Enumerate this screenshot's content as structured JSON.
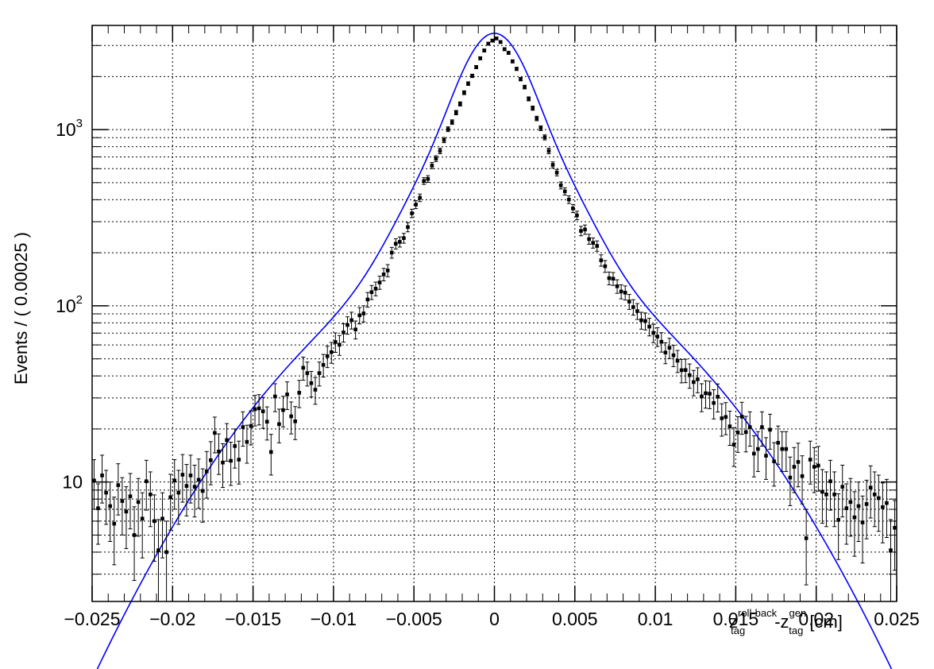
{
  "chart_data": {
    "type": "scatter",
    "title": "",
    "ylabel": "Events / ( 0.00025 )",
    "xlabel_parts": {
      "base1": "z",
      "sup1": "roll-back",
      "sub1": "tag",
      "sep": "-",
      "base2": "z",
      "sup2": "gen",
      "sub2": "tag",
      "unit": "[cm]"
    },
    "x_scale": "linear",
    "y_scale": "log",
    "xlim": [
      -0.025,
      0.025
    ],
    "ylim": [
      2.1,
      3900
    ],
    "grid": true,
    "x_ticks": [
      -0.025,
      -0.02,
      -0.015,
      -0.01,
      -0.005,
      0,
      0.005,
      0.01,
      0.015,
      0.02,
      0.025
    ],
    "x_tick_labels": [
      "−0.025",
      "−0.02",
      "−0.015",
      "−0.01",
      "−0.005",
      "0",
      "0.005",
      "0.01",
      "0.015",
      "0.02",
      "0.025"
    ],
    "y_ticks": [
      10,
      100,
      1000
    ],
    "y_tick_labels": [
      {
        "base": "10",
        "exp": ""
      },
      {
        "base": "10",
        "exp": "2"
      },
      {
        "base": "10",
        "exp": "3"
      }
    ],
    "series": [
      {
        "kind": "data-points-with-errors",
        "color": "#000000",
        "points": [
          [
            -0.02488,
            10.2
          ],
          [
            -0.02463,
            7.1
          ],
          [
            -0.02438,
            10.9
          ],
          [
            -0.02413,
            8.7
          ],
          [
            -0.02388,
            7.3
          ],
          [
            -0.02363,
            5.8
          ],
          [
            -0.02338,
            9.6
          ],
          [
            -0.02313,
            7.8
          ],
          [
            -0.02288,
            6.8
          ],
          [
            -0.02263,
            8.3
          ],
          [
            -0.02238,
            5.0
          ],
          [
            -0.02213,
            7.7
          ],
          [
            -0.02188,
            6.2
          ],
          [
            -0.02163,
            10.1
          ],
          [
            -0.02138,
            8.5
          ],
          [
            -0.02113,
            6.0
          ],
          [
            -0.02088,
            4.1
          ],
          [
            -0.02063,
            6.2
          ],
          [
            -0.02038,
            4.0
          ],
          [
            -0.02013,
            8.2
          ],
          [
            -0.01988,
            10.2
          ],
          [
            -0.01963,
            8.7
          ],
          [
            -0.01938,
            11.0
          ],
          [
            -0.01913,
            9.5
          ],
          [
            -0.01888,
            10.9
          ],
          [
            -0.01863,
            9.4
          ],
          [
            -0.01838,
            10.3
          ],
          [
            -0.01813,
            8.9
          ],
          [
            -0.01788,
            11.5
          ],
          [
            -0.01763,
            13.3
          ],
          [
            -0.01738,
            19.0
          ],
          [
            -0.01713,
            14.9
          ],
          [
            -0.01688,
            12.9
          ],
          [
            -0.01663,
            17.3
          ],
          [
            -0.01638,
            13.2
          ],
          [
            -0.01613,
            16.0
          ],
          [
            -0.01588,
            13.4
          ],
          [
            -0.01563,
            20.5
          ],
          [
            -0.01538,
            16.9
          ],
          [
            -0.01513,
            20.8
          ],
          [
            -0.01488,
            25.9
          ],
          [
            -0.01463,
            26.2
          ],
          [
            -0.01438,
            25.2
          ],
          [
            -0.01413,
            22.0
          ],
          [
            -0.01388,
            14.8
          ],
          [
            -0.01363,
            30.6
          ],
          [
            -0.01338,
            21.3
          ],
          [
            -0.01313,
            25.6
          ],
          [
            -0.01288,
            31.4
          ],
          [
            -0.01263,
            23.6
          ],
          [
            -0.01238,
            22.1
          ],
          [
            -0.01213,
            32.1
          ],
          [
            -0.01188,
            44.5
          ],
          [
            -0.01163,
            41.5
          ],
          [
            -0.01138,
            36.4
          ],
          [
            -0.01113,
            33.4
          ],
          [
            -0.01088,
            41.5
          ],
          [
            -0.01063,
            46.2
          ],
          [
            -0.01038,
            51.8
          ],
          [
            -0.01013,
            54.6
          ],
          [
            -0.00988,
            62.3
          ],
          [
            -0.00963,
            60.1
          ],
          [
            -0.00938,
            70.6
          ],
          [
            -0.00913,
            77.8
          ],
          [
            -0.00888,
            82.9
          ],
          [
            -0.00863,
            73.4
          ],
          [
            -0.00838,
            88.3
          ],
          [
            -0.00813,
            90.5
          ],
          [
            -0.00788,
            108.6
          ],
          [
            -0.00763,
            119.5
          ],
          [
            -0.00738,
            125.1
          ],
          [
            -0.00713,
            135.6
          ],
          [
            -0.00688,
            150.8
          ],
          [
            -0.00663,
            158.7
          ],
          [
            -0.00638,
            200.4
          ],
          [
            -0.00613,
            225.1
          ],
          [
            -0.00588,
            230.6
          ],
          [
            -0.00563,
            242.2
          ],
          [
            -0.00538,
            279.7
          ],
          [
            -0.00513,
            334.8
          ],
          [
            -0.00488,
            375.4
          ],
          [
            -0.00463,
            410.6
          ],
          [
            -0.00438,
            510.8
          ],
          [
            -0.00413,
            524.8
          ],
          [
            -0.00388,
            625.0
          ],
          [
            -0.00363,
            684.3
          ],
          [
            -0.00338,
            756.7
          ],
          [
            -0.00313,
            872.0
          ],
          [
            -0.00288,
            1005.2
          ],
          [
            -0.00263,
            1102.5
          ],
          [
            -0.00238,
            1248.5
          ],
          [
            -0.00213,
            1398.4
          ],
          [
            -0.00188,
            1619.6
          ],
          [
            -0.00163,
            1823.4
          ],
          [
            -0.00138,
            2018.0
          ],
          [
            -0.00113,
            2262.1
          ],
          [
            -0.00088,
            2539.9
          ],
          [
            -0.00063,
            2810.0
          ],
          [
            -0.00038,
            3073.0
          ],
          [
            -0.00013,
            3198.8
          ],
          [
            0.00013,
            3290.7
          ],
          [
            0.00038,
            3140.2
          ],
          [
            0.00063,
            2859.5
          ],
          [
            0.00088,
            2725.2
          ],
          [
            0.00113,
            2438.1
          ],
          [
            0.00138,
            2210.4
          ],
          [
            0.00163,
            1934.0
          ],
          [
            0.00188,
            1743.0
          ],
          [
            0.00213,
            1494.1
          ],
          [
            0.00238,
            1323.6
          ],
          [
            0.00263,
            1156.6
          ],
          [
            0.00288,
            1018.6
          ],
          [
            0.00313,
            903.4
          ],
          [
            0.00338,
            756.2
          ],
          [
            0.00363,
            630.8
          ],
          [
            0.00388,
            569.8
          ],
          [
            0.00413,
            482.4
          ],
          [
            0.00438,
            446.0
          ],
          [
            0.00463,
            400.7
          ],
          [
            0.00488,
            357.0
          ],
          [
            0.00513,
            325.9
          ],
          [
            0.00538,
            266.0
          ],
          [
            0.00563,
            271.0
          ],
          [
            0.00588,
            239.0
          ],
          [
            0.00613,
            227.6
          ],
          [
            0.00638,
            218.7
          ],
          [
            0.00663,
            181.2
          ],
          [
            0.00688,
            167.7
          ],
          [
            0.00713,
            143.5
          ],
          [
            0.00738,
            142.5
          ],
          [
            0.00763,
            129.1
          ],
          [
            0.00788,
            120.5
          ],
          [
            0.00813,
            118.7
          ],
          [
            0.00838,
            105.7
          ],
          [
            0.00863,
            98.4
          ],
          [
            0.00888,
            93.3
          ],
          [
            0.00913,
            82.8
          ],
          [
            0.00938,
            82.0
          ],
          [
            0.00963,
            76.2
          ],
          [
            0.00988,
            70.2
          ],
          [
            0.01013,
            66.9
          ],
          [
            0.01038,
            62.5
          ],
          [
            0.01063,
            54.3
          ],
          [
            0.01088,
            57.8
          ],
          [
            0.01113,
            52.4
          ],
          [
            0.01138,
            48.8
          ],
          [
            0.01163,
            43.1
          ],
          [
            0.01188,
            43.2
          ],
          [
            0.01213,
            40.4
          ],
          [
            0.01238,
            36.9
          ],
          [
            0.01263,
            38.3
          ],
          [
            0.01288,
            30.6
          ],
          [
            0.01313,
            31.9
          ],
          [
            0.01338,
            31.7
          ],
          [
            0.01363,
            28.1
          ],
          [
            0.01388,
            30.5
          ],
          [
            0.01413,
            23.0
          ],
          [
            0.01438,
            23.4
          ],
          [
            0.01463,
            20.7
          ],
          [
            0.01488,
            16.3
          ],
          [
            0.01513,
            19.1
          ],
          [
            0.01538,
            23.5
          ],
          [
            0.01563,
            19.2
          ],
          [
            0.01588,
            20.5
          ],
          [
            0.01613,
            14.5
          ],
          [
            0.01638,
            15.4
          ],
          [
            0.01663,
            20.5
          ],
          [
            0.01688,
            14.1
          ],
          [
            0.01713,
            19.8
          ],
          [
            0.01738,
            13.1
          ],
          [
            0.01763,
            16.7
          ],
          [
            0.01788,
            15.4
          ],
          [
            0.01813,
            15.4
          ],
          [
            0.01838,
            10.6
          ],
          [
            0.01863,
            12.2
          ],
          [
            0.01888,
            13.0
          ],
          [
            0.01913,
            10.8
          ],
          [
            0.01938,
            4.8
          ],
          [
            0.01963,
            13.4
          ],
          [
            0.01988,
            12.2
          ],
          [
            0.02013,
            12.4
          ],
          [
            0.02038,
            8.8
          ],
          [
            0.02063,
            8.5
          ],
          [
            0.02088,
            10.1
          ],
          [
            0.02113,
            8.5
          ],
          [
            0.02138,
            6.1
          ],
          [
            0.02163,
            9.4
          ],
          [
            0.02188,
            7.1
          ],
          [
            0.02213,
            7.7
          ],
          [
            0.02238,
            6.3
          ],
          [
            0.02263,
            7.3
          ],
          [
            0.02288,
            5.9
          ],
          [
            0.02313,
            7.5
          ],
          [
            0.02338,
            9.3
          ],
          [
            0.02363,
            8.5
          ],
          [
            0.02388,
            8.1
          ],
          [
            0.02413,
            7.2
          ],
          [
            0.02438,
            7.6
          ],
          [
            0.02463,
            4.1
          ],
          [
            0.02488,
            5.5
          ]
        ]
      },
      {
        "kind": "fit-curve",
        "color": "#0000ff",
        "model": "three-gaussian",
        "components": [
          {
            "amplitude": 2200,
            "sigma": 0.0016
          },
          {
            "amplitude": 1125,
            "sigma": 0.0031
          },
          {
            "amplitude": 195,
            "sigma": 0.0075
          }
        ]
      }
    ]
  }
}
